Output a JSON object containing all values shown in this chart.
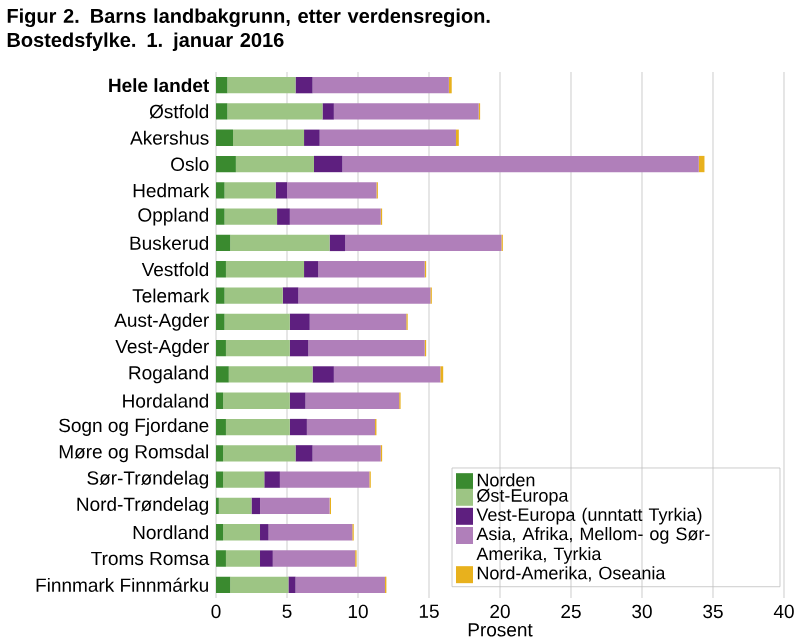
{
  "chart_data": {
    "type": "bar",
    "orientation": "horizontal",
    "stacked": true,
    "title": "Figur 2. Barns landbakgrunn, etter verdensregion. Bostedsfylke. 1. januar 2016",
    "xlabel": "Prosent",
    "categories": [
      "Hele landet",
      "Østfold",
      "Akershus",
      "Oslo",
      "Hedmark",
      "Oppland",
      "Buskerud",
      "Vestfold",
      "Telemark",
      "Aust-Agder",
      "Vest-Agder",
      "Rogaland",
      "Hordaland",
      "Sogn og Fjordane",
      "Møre og Romsdal",
      "Sør-Trøndelag",
      "Nord-Trøndelag",
      "Nordland",
      "Troms Romsa",
      "Finnmark Finnmárku"
    ],
    "series": [
      {
        "name": "Norden",
        "color": "#3a8a2f",
        "values": [
          0.8,
          0.8,
          1.2,
          1.4,
          0.6,
          0.6,
          1.0,
          0.7,
          0.6,
          0.6,
          0.7,
          0.9,
          0.5,
          0.7,
          0.5,
          0.5,
          0.2,
          0.5,
          0.7,
          1.0
        ]
      },
      {
        "name": "Øst-Europa",
        "color": "#9dc584",
        "values": [
          4.8,
          6.7,
          5.0,
          5.5,
          3.6,
          3.7,
          7.0,
          5.5,
          4.1,
          4.6,
          4.5,
          5.9,
          4.7,
          4.5,
          5.1,
          2.9,
          2.3,
          2.6,
          2.4,
          4.1
        ]
      },
      {
        "name": "Vest-Europa (unntatt Tyrkia)",
        "color": "#5e1f7f",
        "values": [
          1.2,
          0.8,
          1.1,
          2.0,
          0.8,
          0.9,
          1.1,
          1.0,
          1.1,
          1.4,
          1.3,
          1.5,
          1.1,
          1.2,
          1.2,
          1.1,
          0.6,
          0.6,
          0.9,
          0.5
        ]
      },
      {
        "name": "Asia, Afrika, Mellom- og Sør-Amerika, Tyrkia",
        "color": "#b07fba",
        "values": [
          9.6,
          10.2,
          9.6,
          25.1,
          6.3,
          6.4,
          11.0,
          7.5,
          9.3,
          6.8,
          8.2,
          7.5,
          6.6,
          4.8,
          4.8,
          6.3,
          4.9,
          5.9,
          5.8,
          6.3
        ]
      },
      {
        "name": "Nord-Amerika, Oseania",
        "color": "#e8b11d",
        "values": [
          0.2,
          0.1,
          0.2,
          0.4,
          0.1,
          0.1,
          0.1,
          0.1,
          0.1,
          0.1,
          0.1,
          0.2,
          0.1,
          0.1,
          0.1,
          0.1,
          0.1,
          0.1,
          0.1,
          0.1
        ]
      }
    ],
    "xlim": [
      0,
      40
    ],
    "xticks": [
      0,
      5,
      10,
      15,
      20,
      25,
      30,
      35,
      40
    ],
    "grid": "x",
    "legend": "bottom right"
  }
}
